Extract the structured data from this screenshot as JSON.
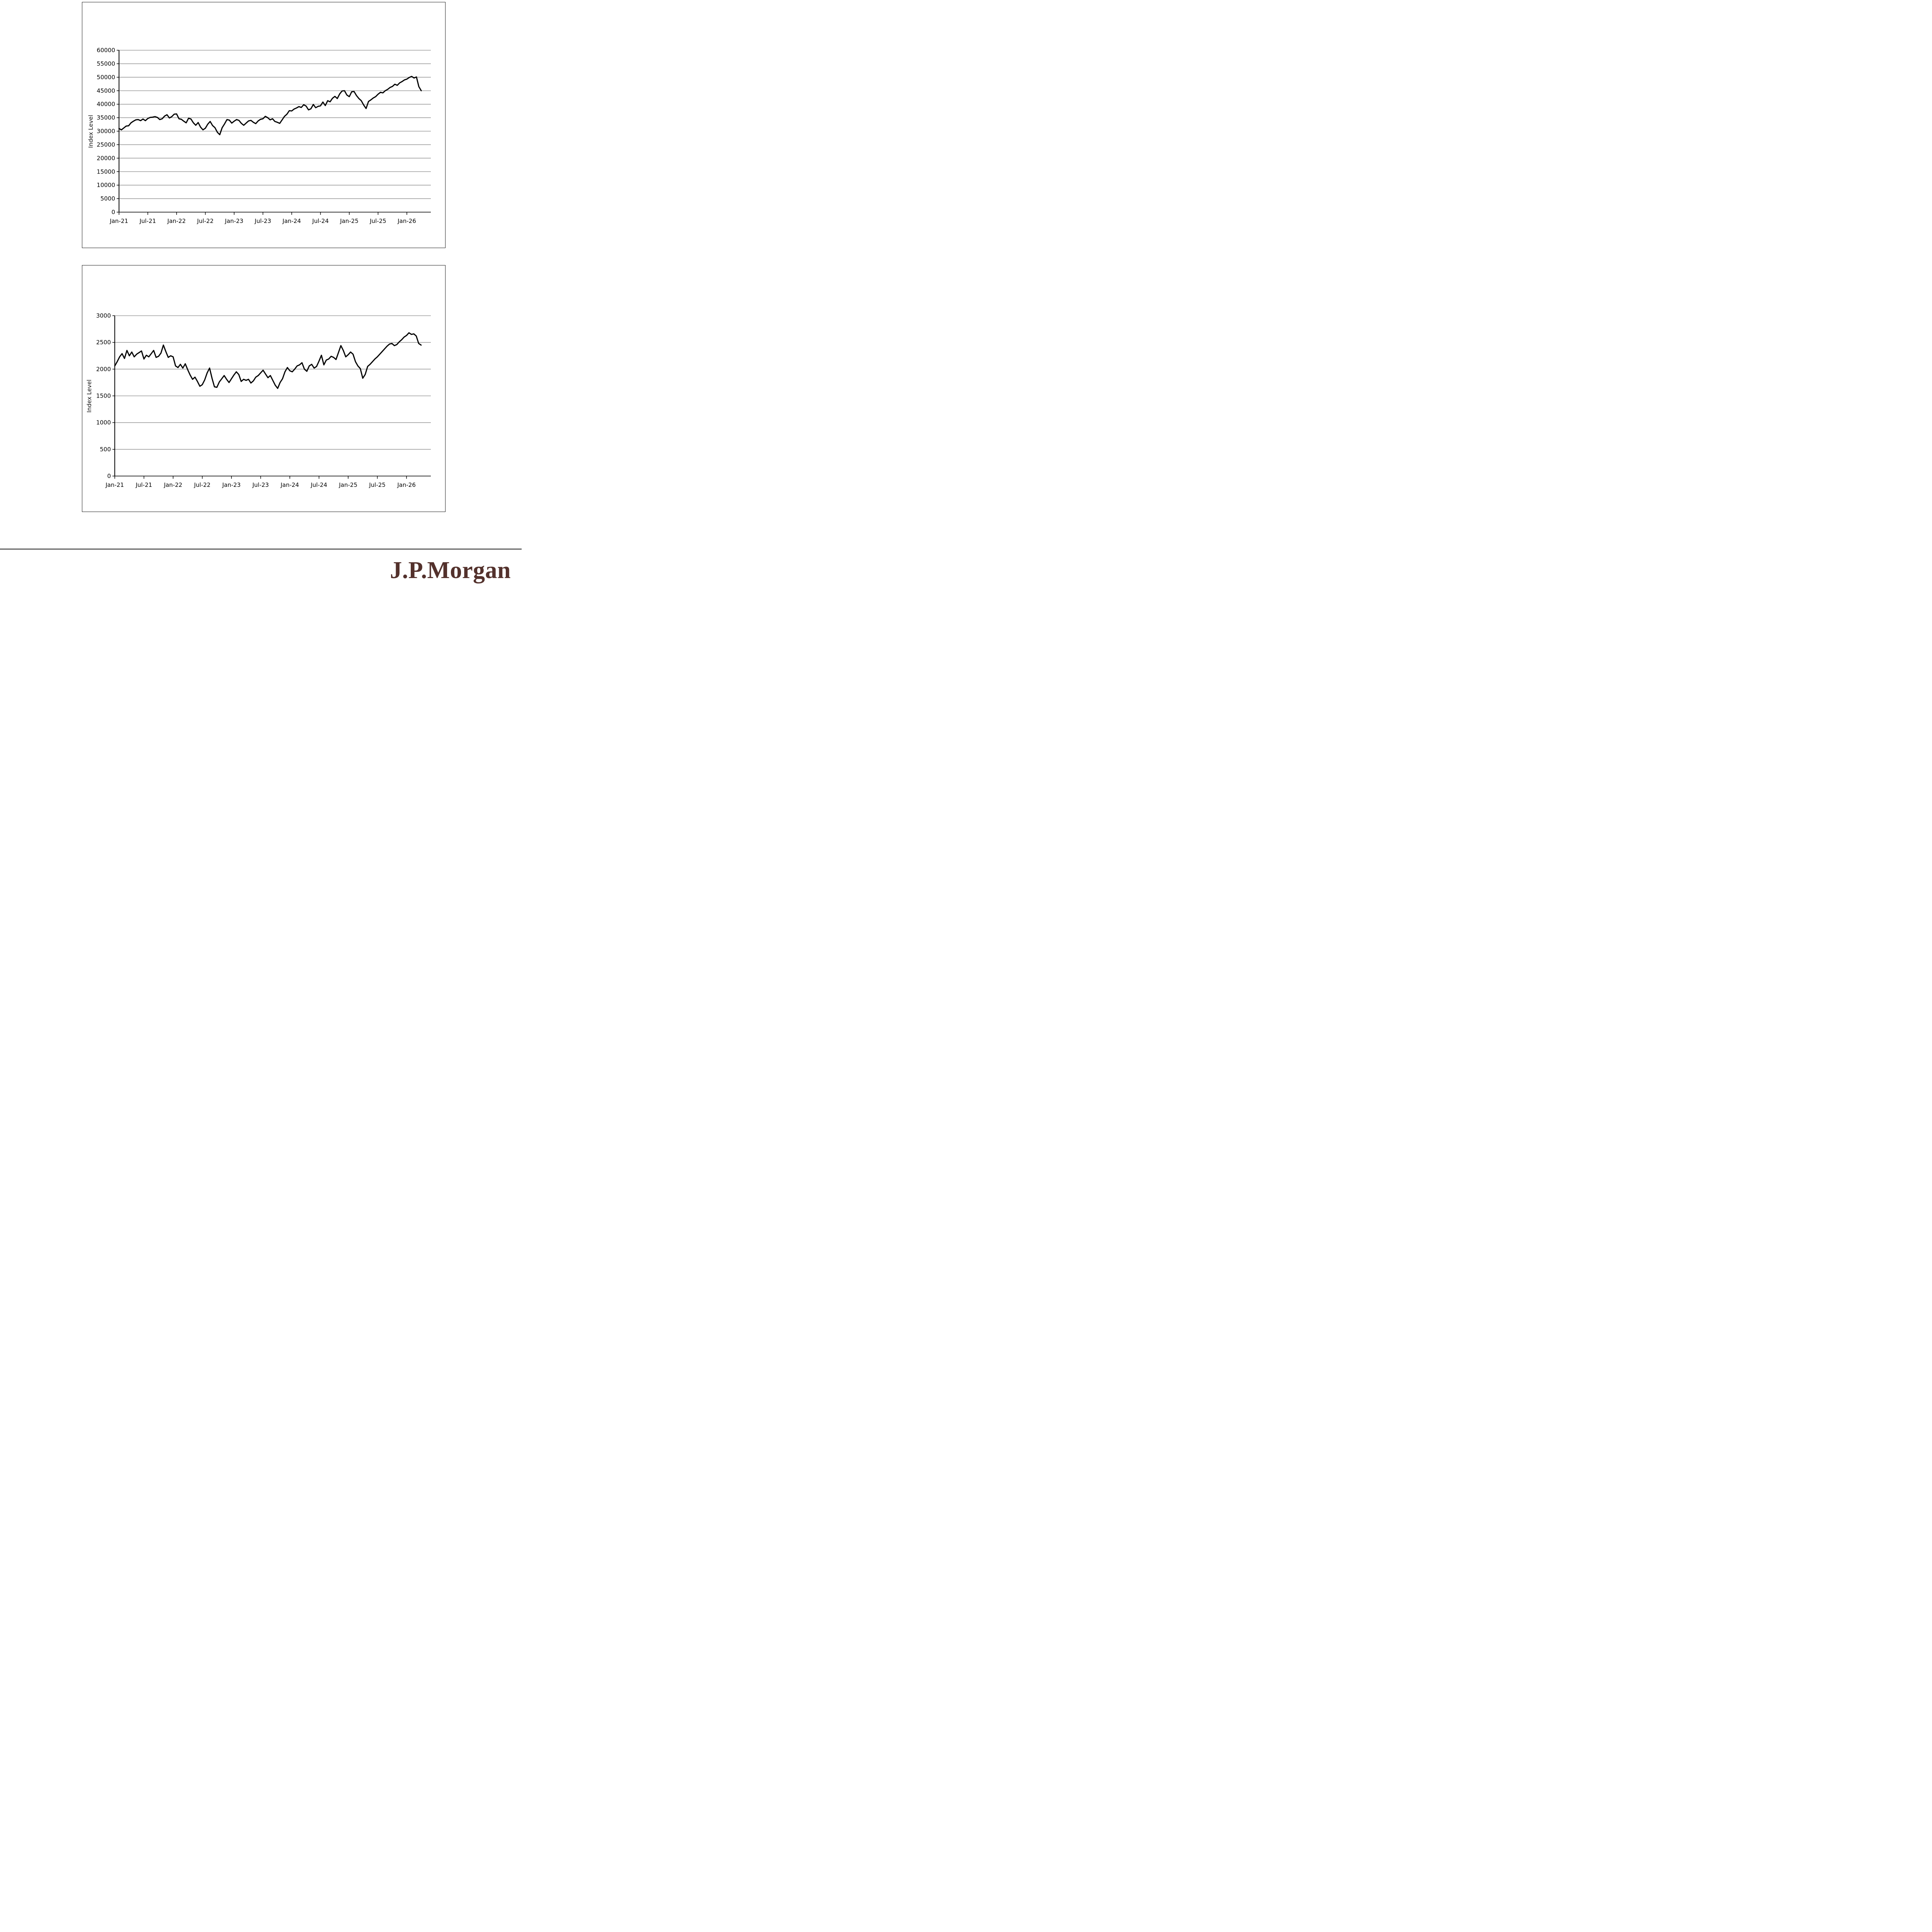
{
  "chart_data": [
    {
      "type": "line",
      "position": "top",
      "ylabel": "Index Level",
      "xlabel": "",
      "ylim": [
        0,
        60000
      ],
      "yticks": [
        0,
        5000,
        10000,
        15000,
        20000,
        25000,
        30000,
        35000,
        40000,
        45000,
        50000,
        55000,
        60000
      ],
      "xticks": [
        {
          "label": "Jan-21",
          "month": 0
        },
        {
          "label": "Jul-21",
          "month": 6
        },
        {
          "label": "Jan-22",
          "month": 12
        },
        {
          "label": "Jul-22",
          "month": 18
        },
        {
          "label": "Jan-23",
          "month": 24
        },
        {
          "label": "Jul-23",
          "month": 30
        },
        {
          "label": "Jan-24",
          "month": 36
        },
        {
          "label": "Jul-24",
          "month": 42
        },
        {
          "label": "Jan-25",
          "month": 48
        },
        {
          "label": "Jul-25",
          "month": 54
        },
        {
          "label": "Jan-26",
          "month": 60
        }
      ],
      "x_domain_months": [
        0,
        65
      ],
      "x_unit": "months since Jan-21",
      "points_start_month": 0,
      "points_interval_months": 0.5,
      "grid": "on",
      "line_color": "#000000",
      "grid_color": "#8a8a8a",
      "values": [
        31000,
        30500,
        31200,
        31900,
        32000,
        33100,
        33700,
        34200,
        34300,
        33900,
        34500,
        33900,
        34700,
        35100,
        35200,
        35400,
        35100,
        34300,
        34600,
        35600,
        36100,
        34900,
        35400,
        36300,
        36400,
        34600,
        34400,
        33700,
        33100,
        34800,
        34500,
        33100,
        32200,
        33200,
        31500,
        30500,
        31100,
        32600,
        33600,
        32100,
        31300,
        29600,
        28700,
        31300,
        32700,
        34300,
        34100,
        33000,
        33700,
        34300,
        34000,
        32900,
        32200,
        33000,
        33800,
        34000,
        33300,
        32800,
        33800,
        34400,
        34600,
        35500,
        35000,
        34200,
        34600,
        33600,
        33300,
        32900,
        34200,
        35500,
        36300,
        37600,
        37500,
        38200,
        38600,
        39100,
        38800,
        39800,
        39300,
        37900,
        38300,
        39900,
        38700,
        39200,
        39400,
        40800,
        39500,
        41300,
        40900,
        42200,
        42900,
        42100,
        43800,
        44900,
        45000,
        43400,
        42800,
        44600,
        44700,
        43200,
        42100,
        41300,
        39700,
        38400,
        41000,
        41600,
        42300,
        42800,
        43700,
        44400,
        44200,
        45000,
        45500,
        46200,
        46600,
        47400,
        47000,
        47900,
        48400,
        49000,
        49300,
        49900,
        50300,
        49700,
        50100,
        46500,
        45000
      ]
    },
    {
      "type": "line",
      "position": "bottom",
      "ylabel": "Index Level",
      "xlabel": "",
      "ylim": [
        0,
        3000
      ],
      "yticks": [
        0,
        500,
        1000,
        1500,
        2000,
        2500,
        3000
      ],
      "xticks": [
        {
          "label": "Jan-21",
          "month": 0
        },
        {
          "label": "Jul-21",
          "month": 6
        },
        {
          "label": "Jan-22",
          "month": 12
        },
        {
          "label": "Jul-22",
          "month": 18
        },
        {
          "label": "Jan-23",
          "month": 24
        },
        {
          "label": "Jul-23",
          "month": 30
        },
        {
          "label": "Jan-24",
          "month": 36
        },
        {
          "label": "Jul-24",
          "month": 42
        },
        {
          "label": "Jan-25",
          "month": 48
        },
        {
          "label": "Jul-25",
          "month": 54
        },
        {
          "label": "Jan-26",
          "month": 60
        }
      ],
      "x_domain_months": [
        0,
        65
      ],
      "x_unit": "months since Jan-21",
      "points_start_month": 0,
      "points_interval_months": 0.5,
      "grid": "on",
      "line_color": "#000000",
      "grid_color": "#8a8a8a",
      "values": [
        2060,
        2140,
        2230,
        2290,
        2200,
        2350,
        2250,
        2320,
        2230,
        2280,
        2310,
        2340,
        2190,
        2260,
        2230,
        2290,
        2350,
        2220,
        2240,
        2300,
        2450,
        2330,
        2220,
        2250,
        2230,
        2060,
        2030,
        2090,
        2020,
        2100,
        1990,
        1890,
        1810,
        1850,
        1770,
        1680,
        1710,
        1800,
        1930,
        2020,
        1830,
        1670,
        1660,
        1760,
        1820,
        1880,
        1810,
        1750,
        1820,
        1890,
        1950,
        1900,
        1770,
        1810,
        1790,
        1810,
        1740,
        1780,
        1850,
        1880,
        1930,
        1980,
        1910,
        1840,
        1880,
        1790,
        1700,
        1640,
        1750,
        1820,
        1950,
        2030,
        1970,
        1950,
        2000,
        2060,
        2080,
        2120,
        2000,
        1960,
        2060,
        2090,
        2020,
        2050,
        2150,
        2260,
        2080,
        2170,
        2190,
        2240,
        2220,
        2180,
        2310,
        2440,
        2350,
        2230,
        2270,
        2320,
        2280,
        2140,
        2060,
        2010,
        1830,
        1900,
        2050,
        2090,
        2140,
        2190,
        2230,
        2280,
        2330,
        2380,
        2430,
        2470,
        2480,
        2440,
        2460,
        2510,
        2550,
        2600,
        2630,
        2680,
        2650,
        2660,
        2620,
        2480,
        2450
      ]
    }
  ],
  "footer": {
    "logo_text": "J.P.Morgan",
    "logo_color": "#53312c",
    "divider_color": "#1a1a1a"
  }
}
